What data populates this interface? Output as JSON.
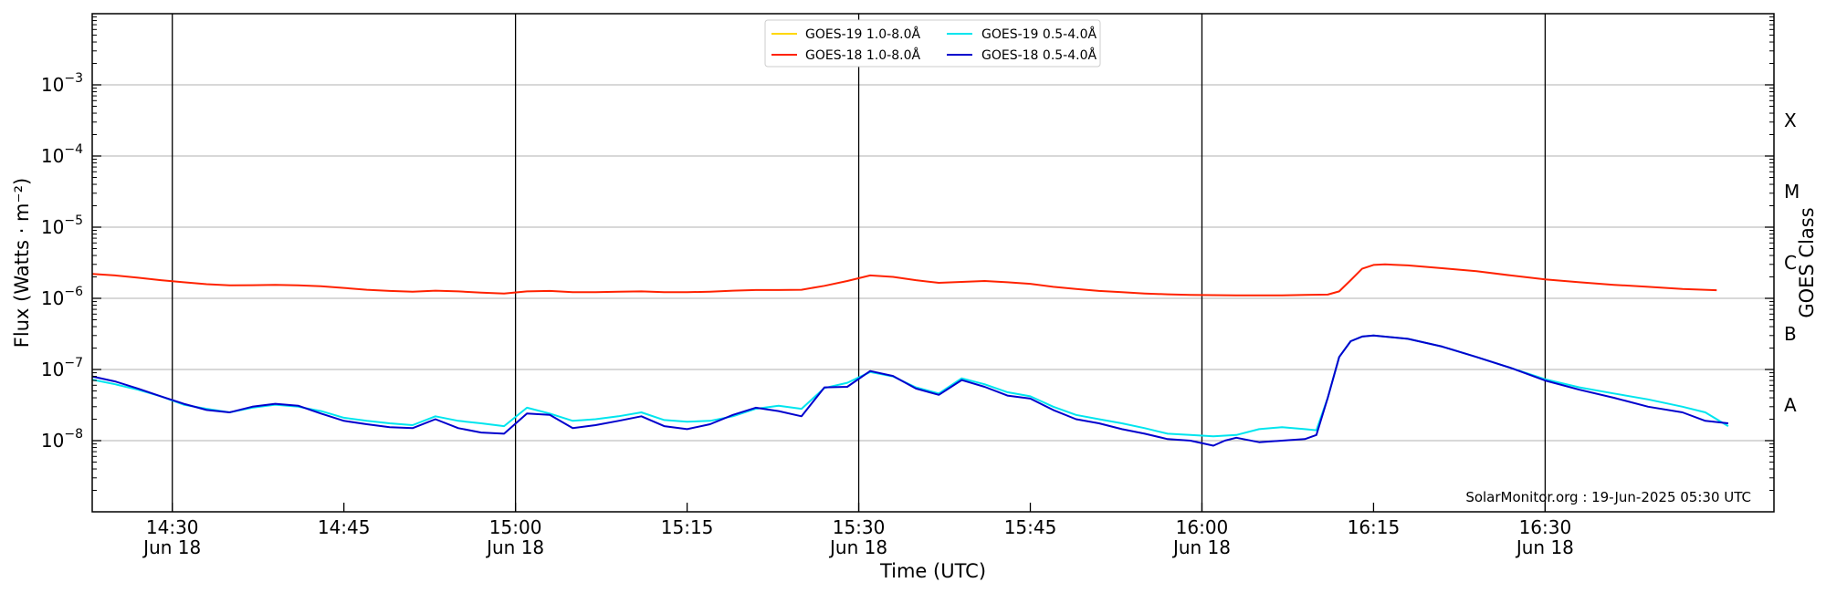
{
  "chart_data": {
    "type": "line",
    "xlabel": "Time (UTC)",
    "ylabel": "Flux (Watts · m⁻²)",
    "y2label": "GOES Class",
    "yscale": "log",
    "ylim": [
      1e-09,
      0.01
    ],
    "xlim": [
      "14:23",
      "16:50"
    ],
    "grid": "horizontal",
    "legend_location": "top-center",
    "credit": "SolarMonitor.org : 19-Jun-2025 05:30 UTC",
    "y_ticks": [
      {
        "value": 1e-08,
        "base": "10",
        "exp": "−8"
      },
      {
        "value": 1e-07,
        "base": "10",
        "exp": "−7"
      },
      {
        "value": 1e-06,
        "base": "10",
        "exp": "−6"
      },
      {
        "value": 1e-05,
        "base": "10",
        "exp": "−5"
      },
      {
        "value": 0.0001,
        "base": "10",
        "exp": "−4"
      },
      {
        "value": 0.001,
        "base": "10",
        "exp": "−3"
      }
    ],
    "x_ticks": [
      {
        "time": "14:30",
        "label": "14:30",
        "date": "Jun 18"
      },
      {
        "time": "14:45",
        "label": "14:45",
        "date": ""
      },
      {
        "time": "15:00",
        "label": "15:00",
        "date": "Jun 18"
      },
      {
        "time": "15:15",
        "label": "15:15",
        "date": ""
      },
      {
        "time": "15:30",
        "label": "15:30",
        "date": "Jun 18"
      },
      {
        "time": "15:45",
        "label": "15:45",
        "date": ""
      },
      {
        "time": "16:00",
        "label": "16:00",
        "date": "Jun 18"
      },
      {
        "time": "16:15",
        "label": "16:15",
        "date": ""
      },
      {
        "time": "16:30",
        "label": "16:30",
        "date": "Jun 18"
      }
    ],
    "vlines": [
      "14:30",
      "15:00",
      "15:30",
      "16:00",
      "16:30"
    ],
    "classes": [
      {
        "label": "A",
        "value": 1e-08
      },
      {
        "label": "B",
        "value": 1e-07
      },
      {
        "label": "C",
        "value": 1e-06
      },
      {
        "label": "M",
        "value": 1e-05
      },
      {
        "label": "X",
        "value": 0.0001
      }
    ],
    "legend": [
      {
        "label": "GOES-19 1.0-8.0Å",
        "color": "#ffd700"
      },
      {
        "label": "GOES-19 0.5-4.0Å",
        "color": "#00e5ee"
      },
      {
        "label": "GOES-18 1.0-8.0Å",
        "color": "#ff2200"
      },
      {
        "label": "GOES-18 0.5-4.0Å",
        "color": "#0000cd"
      }
    ],
    "series": [
      {
        "name": "GOES-18 1.0-8.0Å",
        "color": "#ff2200",
        "points": [
          [
            "14:23",
            2.2e-06
          ],
          [
            "14:25",
            2.1e-06
          ],
          [
            "14:27",
            1.95e-06
          ],
          [
            "14:29",
            1.8e-06
          ],
          [
            "14:31",
            1.68e-06
          ],
          [
            "14:33",
            1.58e-06
          ],
          [
            "14:35",
            1.52e-06
          ],
          [
            "14:37",
            1.53e-06
          ],
          [
            "14:39",
            1.55e-06
          ],
          [
            "14:41",
            1.52e-06
          ],
          [
            "14:43",
            1.48e-06
          ],
          [
            "14:45",
            1.4e-06
          ],
          [
            "14:47",
            1.32e-06
          ],
          [
            "14:49",
            1.27e-06
          ],
          [
            "14:51",
            1.24e-06
          ],
          [
            "14:53",
            1.28e-06
          ],
          [
            "14:55",
            1.25e-06
          ],
          [
            "14:57",
            1.2e-06
          ],
          [
            "14:59",
            1.17e-06
          ],
          [
            "15:01",
            1.25e-06
          ],
          [
            "15:03",
            1.27e-06
          ],
          [
            "15:05",
            1.22e-06
          ],
          [
            "15:07",
            1.22e-06
          ],
          [
            "15:09",
            1.24e-06
          ],
          [
            "15:11",
            1.25e-06
          ],
          [
            "15:13",
            1.22e-06
          ],
          [
            "15:15",
            1.22e-06
          ],
          [
            "15:17",
            1.24e-06
          ],
          [
            "15:19",
            1.28e-06
          ],
          [
            "15:21",
            1.31e-06
          ],
          [
            "15:23",
            1.31e-06
          ],
          [
            "15:25",
            1.32e-06
          ],
          [
            "15:27",
            1.5e-06
          ],
          [
            "15:29",
            1.75e-06
          ],
          [
            "15:31",
            2.1e-06
          ],
          [
            "15:33",
            2e-06
          ],
          [
            "15:35",
            1.8e-06
          ],
          [
            "15:37",
            1.65e-06
          ],
          [
            "15:39",
            1.7e-06
          ],
          [
            "15:41",
            1.75e-06
          ],
          [
            "15:43",
            1.68e-06
          ],
          [
            "15:45",
            1.6e-06
          ],
          [
            "15:47",
            1.45e-06
          ],
          [
            "15:49",
            1.35e-06
          ],
          [
            "15:51",
            1.27e-06
          ],
          [
            "15:53",
            1.22e-06
          ],
          [
            "15:55",
            1.17e-06
          ],
          [
            "15:57",
            1.14e-06
          ],
          [
            "15:59",
            1.12e-06
          ],
          [
            "16:01",
            1.11e-06
          ],
          [
            "16:03",
            1.1e-06
          ],
          [
            "16:05",
            1.1e-06
          ],
          [
            "16:07",
            1.1e-06
          ],
          [
            "16:09",
            1.12e-06
          ],
          [
            "16:11",
            1.13e-06
          ],
          [
            "16:12",
            1.25e-06
          ],
          [
            "16:13",
            1.8e-06
          ],
          [
            "16:14",
            2.6e-06
          ],
          [
            "16:15",
            2.95e-06
          ],
          [
            "16:16",
            3e-06
          ],
          [
            "16:18",
            2.9e-06
          ],
          [
            "16:21",
            2.65e-06
          ],
          [
            "16:24",
            2.4e-06
          ],
          [
            "16:27",
            2.1e-06
          ],
          [
            "16:30",
            1.85e-06
          ],
          [
            "16:33",
            1.68e-06
          ],
          [
            "16:36",
            1.55e-06
          ],
          [
            "16:39",
            1.45e-06
          ],
          [
            "16:42",
            1.35e-06
          ],
          [
            "16:45",
            1.3e-06
          ]
        ]
      },
      {
        "name": "GOES-19 0.5-4.0Å",
        "color": "#00e5ee",
        "points": [
          [
            "14:23",
            7.2e-08
          ],
          [
            "14:25",
            6.2e-08
          ],
          [
            "14:27",
            5.2e-08
          ],
          [
            "14:29",
            4.2e-08
          ],
          [
            "14:31",
            3.2e-08
          ],
          [
            "14:33",
            2.8e-08
          ],
          [
            "14:35",
            2.5e-08
          ],
          [
            "14:37",
            2.9e-08
          ],
          [
            "14:39",
            3.2e-08
          ],
          [
            "14:41",
            3e-08
          ],
          [
            "14:43",
            2.6e-08
          ],
          [
            "14:45",
            2.1e-08
          ],
          [
            "14:47",
            1.9e-08
          ],
          [
            "14:49",
            1.75e-08
          ],
          [
            "14:51",
            1.65e-08
          ],
          [
            "14:53",
            2.2e-08
          ],
          [
            "14:55",
            1.9e-08
          ],
          [
            "14:57",
            1.75e-08
          ],
          [
            "14:59",
            1.6e-08
          ],
          [
            "15:01",
            2.9e-08
          ],
          [
            "15:03",
            2.4e-08
          ],
          [
            "15:05",
            1.9e-08
          ],
          [
            "15:07",
            2e-08
          ],
          [
            "15:09",
            2.2e-08
          ],
          [
            "15:11",
            2.5e-08
          ],
          [
            "15:13",
            1.95e-08
          ],
          [
            "15:15",
            1.85e-08
          ],
          [
            "15:17",
            1.9e-08
          ],
          [
            "15:19",
            2.2e-08
          ],
          [
            "15:21",
            2.8e-08
          ],
          [
            "15:23",
            3.1e-08
          ],
          [
            "15:25",
            2.8e-08
          ],
          [
            "15:27",
            5.5e-08
          ],
          [
            "15:29",
            6.5e-08
          ],
          [
            "15:31",
            9.2e-08
          ],
          [
            "15:33",
            8e-08
          ],
          [
            "15:35",
            5.6e-08
          ],
          [
            "15:37",
            4.6e-08
          ],
          [
            "15:39",
            7.5e-08
          ],
          [
            "15:41",
            6.2e-08
          ],
          [
            "15:43",
            4.8e-08
          ],
          [
            "15:45",
            4.2e-08
          ],
          [
            "15:47",
            3e-08
          ],
          [
            "15:49",
            2.3e-08
          ],
          [
            "15:51",
            2e-08
          ],
          [
            "15:53",
            1.75e-08
          ],
          [
            "15:55",
            1.5e-08
          ],
          [
            "15:57",
            1.25e-08
          ],
          [
            "15:59",
            1.2e-08
          ],
          [
            "16:01",
            1.15e-08
          ],
          [
            "16:03",
            1.2e-08
          ],
          [
            "16:05",
            1.45e-08
          ],
          [
            "16:07",
            1.55e-08
          ],
          [
            "16:09",
            1.45e-08
          ],
          [
            "16:10",
            1.4e-08
          ],
          [
            "16:11",
            4e-08
          ],
          [
            "16:12",
            1.5e-07
          ],
          [
            "16:13",
            2.5e-07
          ],
          [
            "16:14",
            2.9e-07
          ],
          [
            "16:15",
            3e-07
          ],
          [
            "16:18",
            2.7e-07
          ],
          [
            "16:21",
            2.1e-07
          ],
          [
            "16:24",
            1.5e-07
          ],
          [
            "16:27",
            1.05e-07
          ],
          [
            "16:30",
            7.3e-08
          ],
          [
            "16:33",
            5.6e-08
          ],
          [
            "16:36",
            4.6e-08
          ],
          [
            "16:39",
            3.8e-08
          ],
          [
            "16:42",
            3e-08
          ],
          [
            "16:44",
            2.5e-08
          ],
          [
            "16:46",
            1.6e-08
          ]
        ]
      },
      {
        "name": "GOES-18 0.5-4.0Å",
        "color": "#0000cd",
        "points": [
          [
            "14:23",
            8e-08
          ],
          [
            "14:25",
            6.8e-08
          ],
          [
            "14:27",
            5.4e-08
          ],
          [
            "14:29",
            4.2e-08
          ],
          [
            "14:31",
            3.3e-08
          ],
          [
            "14:33",
            2.7e-08
          ],
          [
            "14:35",
            2.5e-08
          ],
          [
            "14:37",
            3e-08
          ],
          [
            "14:39",
            3.3e-08
          ],
          [
            "14:41",
            3.1e-08
          ],
          [
            "14:43",
            2.4e-08
          ],
          [
            "14:45",
            1.9e-08
          ],
          [
            "14:47",
            1.7e-08
          ],
          [
            "14:49",
            1.55e-08
          ],
          [
            "14:51",
            1.5e-08
          ],
          [
            "14:53",
            2e-08
          ],
          [
            "14:55",
            1.5e-08
          ],
          [
            "14:57",
            1.3e-08
          ],
          [
            "14:59",
            1.25e-08
          ],
          [
            "15:01",
            2.4e-08
          ],
          [
            "15:03",
            2.3e-08
          ],
          [
            "15:05",
            1.5e-08
          ],
          [
            "15:07",
            1.65e-08
          ],
          [
            "15:09",
            1.9e-08
          ],
          [
            "15:11",
            2.2e-08
          ],
          [
            "15:13",
            1.6e-08
          ],
          [
            "15:15",
            1.45e-08
          ],
          [
            "15:17",
            1.7e-08
          ],
          [
            "15:19",
            2.3e-08
          ],
          [
            "15:21",
            2.9e-08
          ],
          [
            "15:23",
            2.6e-08
          ],
          [
            "15:25",
            2.2e-08
          ],
          [
            "15:27",
            5.6e-08
          ],
          [
            "15:29",
            5.7e-08
          ],
          [
            "15:31",
            9.5e-08
          ],
          [
            "15:33",
            8.1e-08
          ],
          [
            "15:35",
            5.4e-08
          ],
          [
            "15:37",
            4.4e-08
          ],
          [
            "15:39",
            7.1e-08
          ],
          [
            "15:41",
            5.7e-08
          ],
          [
            "15:43",
            4.3e-08
          ],
          [
            "15:45",
            3.9e-08
          ],
          [
            "15:47",
            2.7e-08
          ],
          [
            "15:49",
            2e-08
          ],
          [
            "15:51",
            1.75e-08
          ],
          [
            "15:53",
            1.45e-08
          ],
          [
            "15:55",
            1.25e-08
          ],
          [
            "15:57",
            1.05e-08
          ],
          [
            "15:59",
            1e-08
          ],
          [
            "16:01",
            8.5e-09
          ],
          [
            "16:02",
            1e-08
          ],
          [
            "16:03",
            1.1e-08
          ],
          [
            "16:05",
            9.5e-09
          ],
          [
            "16:07",
            1e-08
          ],
          [
            "16:09",
            1.05e-08
          ],
          [
            "16:10",
            1.2e-08
          ],
          [
            "16:11",
            4e-08
          ],
          [
            "16:12",
            1.5e-07
          ],
          [
            "16:13",
            2.5e-07
          ],
          [
            "16:14",
            2.9e-07
          ],
          [
            "16:15",
            3e-07
          ],
          [
            "16:18",
            2.7e-07
          ],
          [
            "16:21",
            2.1e-07
          ],
          [
            "16:24",
            1.5e-07
          ],
          [
            "16:27",
            1.05e-07
          ],
          [
            "16:30",
            7e-08
          ],
          [
            "16:33",
            5.2e-08
          ],
          [
            "16:36",
            4e-08
          ],
          [
            "16:39",
            3e-08
          ],
          [
            "16:42",
            2.5e-08
          ],
          [
            "16:44",
            1.9e-08
          ],
          [
            "16:46",
            1.75e-08
          ]
        ]
      }
    ]
  }
}
